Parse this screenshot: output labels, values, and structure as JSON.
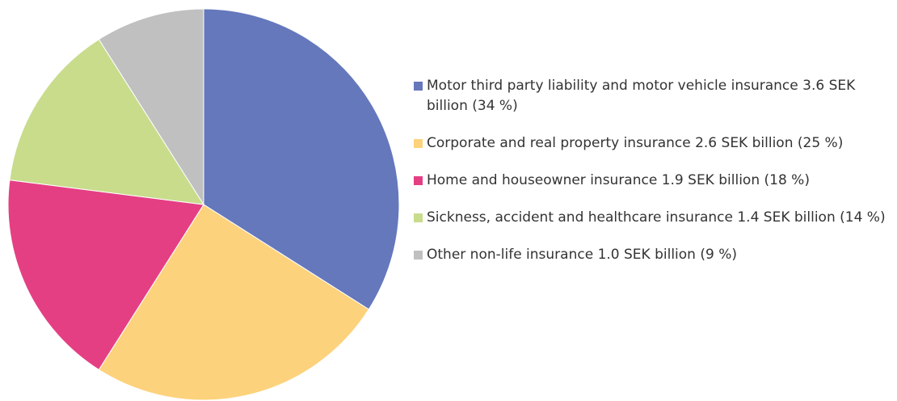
{
  "chart_data": {
    "type": "pie",
    "categories": [
      "Motor third party liability and motor vehicle insurance 3.6 SEK billion (34 %)",
      "Corporate and real property insurance 2.6 SEK billion (25 %)",
      "Home and houseowner insurance 1.9 SEK billion (18 %)",
      "Sickness, accident and healthcare insurance 1.4 SEK billion (14 %)",
      "Other non-life insurance 1.0 SEK billion (9 %)"
    ],
    "values": [
      34,
      25,
      18,
      14,
      9
    ],
    "colors": [
      "#6578bc",
      "#fdd27c",
      "#e53f84",
      "#c8dc8c",
      "#c0c0c0"
    ],
    "legend": "right"
  }
}
